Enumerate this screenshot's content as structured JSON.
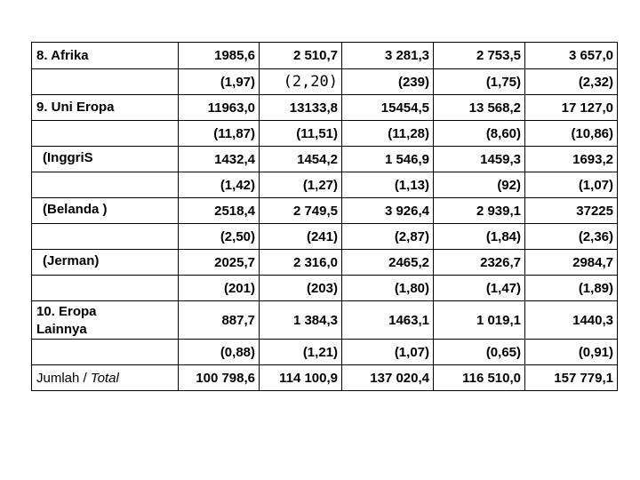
{
  "rows": [
    {
      "label": "8. Afrika",
      "values": [
        "1985,6",
        "2 510,7",
        "3 281,3",
        "2 753,5",
        "3 657,0"
      ]
    },
    {
      "label": "",
      "values": [
        "(1,97)",
        "(2,20)",
        "(239)",
        "(1,75)",
        "(2,32)"
      ]
    },
    {
      "label": "9. Uni Eropa",
      "values": [
        "11963,0",
        "13133,8",
        "15454,5",
        "13 568,2",
        "17 127,0"
      ]
    },
    {
      "label": "",
      "values": [
        "(11,87)",
        "(11,51)",
        "(11,28)",
        "(8,60)",
        "(10,86)"
      ]
    },
    {
      "label": "(InggriS",
      "values": [
        "1432,4",
        "1454,2",
        "1 546,9",
        "1459,3",
        "1693,2"
      ]
    },
    {
      "label": "",
      "values": [
        "(1,42)",
        "(1,27)",
        "(1,13)",
        "(92)",
        "(1,07)"
      ]
    },
    {
      "label": "(Belanda )",
      "values": [
        "2518,4",
        "2 749,5",
        "3 926,4",
        "2 939,1",
        "37225"
      ]
    },
    {
      "label": "",
      "values": [
        "(2,50)",
        "(241)",
        "(2,87)",
        "(1,84)",
        "(2,36)"
      ]
    },
    {
      "label": "(Jerman)",
      "values": [
        "2025,7",
        "2 316,0",
        "2465,2",
        "2326,7",
        "2984,7"
      ]
    },
    {
      "label": "",
      "values": [
        "(201)",
        "(203)",
        "(1,80)",
        "(1,47)",
        "(1,89)"
      ]
    },
    {
      "label_line1": "10. Eropa",
      "label_line2": "Lainnya",
      "values": [
        "887,7",
        "1 384,3",
        "1463,1",
        "1 019,1",
        "1440,3"
      ]
    },
    {
      "label": "",
      "values": [
        "(0,88)",
        "(1,21)",
        "(1,07)",
        "(0,65)",
        "(0,91)"
      ]
    },
    {
      "label_plain": "Jumlah / ",
      "label_italic": "Total",
      "values": [
        "100 798,6",
        "114 100,9",
        "137 020,4",
        "116 510,0",
        "157 779,1"
      ]
    }
  ]
}
